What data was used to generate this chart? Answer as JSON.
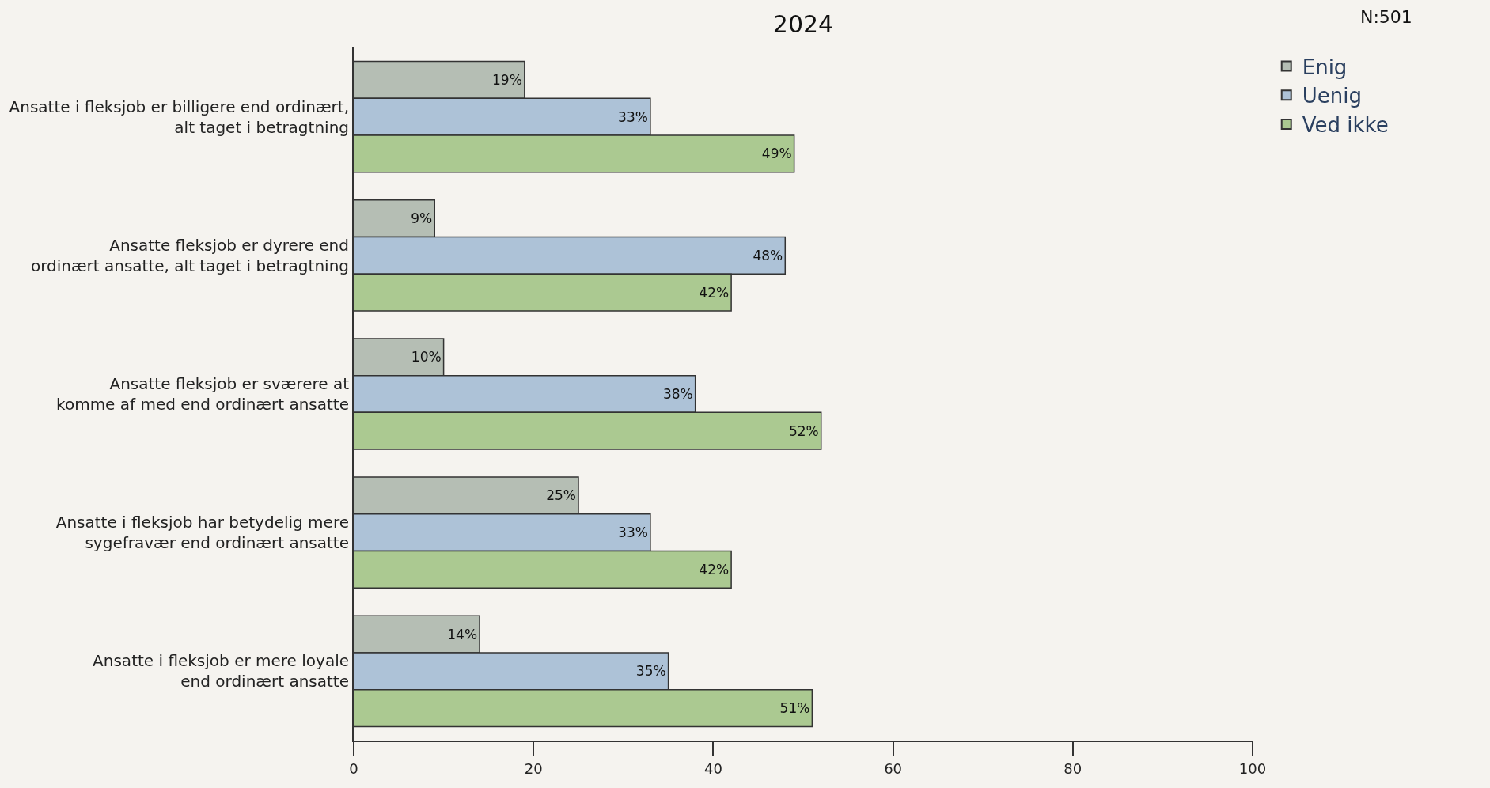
{
  "chart_data": {
    "type": "bar",
    "orientation": "horizontal",
    "title": "2024",
    "categories": [
      "Ansatte i fleksjob er billigere end ordinært,\nalt taget i betragtning",
      "Ansatte fleksjob er dyrere end\nordinært ansatte, alt taget i betragtning",
      "Ansatte fleksjob er sværere at\nkomme af med end ordinært ansatte",
      "Ansatte i fleksjob har betydelig mere\nsygefravær end ordinært ansatte",
      "Ansatte i fleksjob er mere loyale\nend ordinært ansatte"
    ],
    "series": [
      {
        "name": "Enig",
        "color": "#b5beb4",
        "values": [
          19,
          9,
          10,
          25,
          14
        ],
        "value_labels": [
          "19%",
          "9%",
          "10%",
          "25%",
          "14%"
        ]
      },
      {
        "name": "Uenig",
        "color": "#adc2d7",
        "values": [
          33,
          48,
          38,
          33,
          35
        ],
        "value_labels": [
          "33%",
          "48%",
          "38%",
          "33%",
          "35%"
        ]
      },
      {
        "name": "Ved ikke",
        "color": "#abc991",
        "values": [
          49,
          42,
          52,
          42,
          51
        ],
        "value_labels": [
          "49%",
          "42%",
          "52%",
          "42%",
          "51%"
        ]
      }
    ],
    "xlim": [
      0,
      100
    ],
    "xticks": [
      0,
      20,
      40,
      60,
      80,
      100
    ],
    "grid": false,
    "legend": "top right",
    "annotations": [
      "N:501"
    ]
  }
}
